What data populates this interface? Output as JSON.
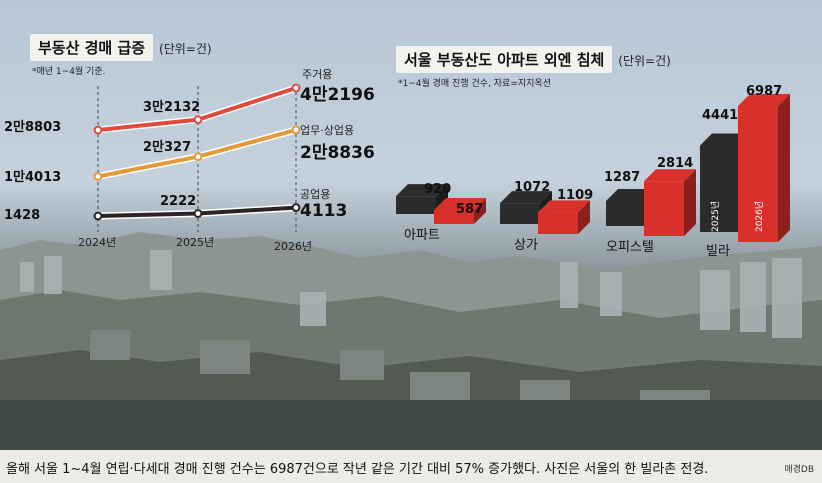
{
  "chart_data": [
    {
      "type": "line",
      "title": "부동산 경매 급증",
      "unit": "(단위=건)",
      "note": "*매년 1~4월 기준.",
      "x": [
        "2024년",
        "2025년",
        "2026년"
      ],
      "series": [
        {
          "name": "주거용",
          "values": [
            28803,
            32132,
            42196
          ],
          "labels": [
            "2만8803",
            "3만2132",
            "4만2196"
          ],
          "color": "#e0493c"
        },
        {
          "name": "업무·상업용",
          "values": [
            14013,
            20327,
            28836
          ],
          "labels": [
            "1만4013",
            "2만327",
            "2만8836"
          ],
          "color": "#e39a3a"
        },
        {
          "name": "공업용",
          "values": [
            1428,
            2222,
            4113
          ],
          "labels": [
            "1428",
            "2222",
            "4113"
          ],
          "color": "#2a2223"
        }
      ]
    },
    {
      "type": "bar",
      "title": "서울 부동산도 아파트 외엔 침체",
      "unit": "(단위=건)",
      "note": "*1~4월 경매 진행 건수, 자료=지지옥션",
      "categories": [
        "아파트",
        "상가",
        "오피스텔",
        "빌라"
      ],
      "series": [
        {
          "name": "2025년",
          "values": [
            920,
            1072,
            1287,
            4441
          ],
          "color": "#2b2b2b"
        },
        {
          "name": "2026년",
          "values": [
            587,
            1109,
            2814,
            6987
          ],
          "color": "#d9302b"
        }
      ],
      "labels_2025": [
        "920",
        "1072",
        "1287",
        "4441"
      ],
      "labels_2026": [
        "587",
        "1109",
        "2814",
        "6987"
      ]
    }
  ],
  "caption": "올해 서울 1~4월 연립·다세대 경매 진행 건수는 6987건으로 작년 같은 기간 대비 57% 증가했다. 사진은 서울의 한 빌라촌 전경.",
  "credit": "매경DB"
}
